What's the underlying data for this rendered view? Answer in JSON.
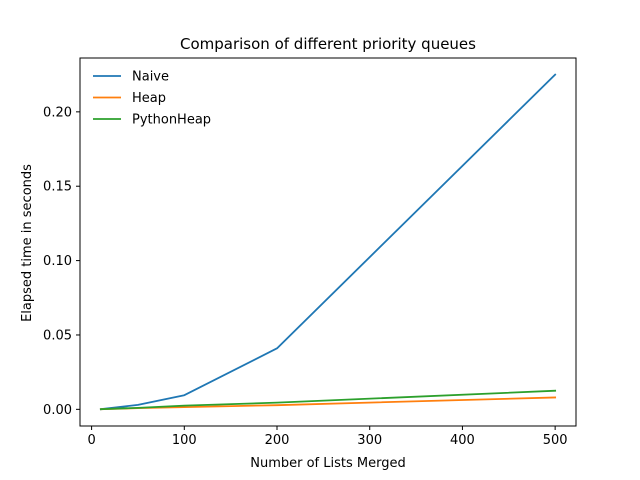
{
  "chart_data": {
    "type": "line",
    "title": "Comparison of different priority queues",
    "xlabel": "Number of Lists Merged",
    "ylabel": "Elapsed time in seconds",
    "xlim": [
      -12.5,
      522.5
    ],
    "ylim": [
      -0.0112,
      0.2362
    ],
    "xticks": [
      0,
      100,
      200,
      300,
      400,
      500
    ],
    "xtick_labels": [
      "0",
      "100",
      "200",
      "300",
      "400",
      "500"
    ],
    "yticks": [
      0.0,
      0.05,
      0.1,
      0.15,
      0.2
    ],
    "ytick_labels": [
      "0.00",
      "0.05",
      "0.10",
      "0.15",
      "0.20"
    ],
    "legend_position": "top-left",
    "grid": false,
    "series": [
      {
        "name": "Naive",
        "color": "#1f77b4",
        "x": [
          10,
          50,
          100,
          200,
          500
        ],
        "y": [
          0.0001,
          0.003,
          0.0095,
          0.041,
          0.225
        ]
      },
      {
        "name": "Heap",
        "color": "#ff7f0e",
        "x": [
          10,
          50,
          100,
          200,
          500
        ],
        "y": [
          0.0001,
          0.0008,
          0.0015,
          0.0028,
          0.008
        ]
      },
      {
        "name": "PythonHeap",
        "color": "#2ca02c",
        "x": [
          10,
          50,
          100,
          200,
          500
        ],
        "y": [
          0.0001,
          0.001,
          0.0025,
          0.0045,
          0.0125
        ]
      }
    ]
  }
}
